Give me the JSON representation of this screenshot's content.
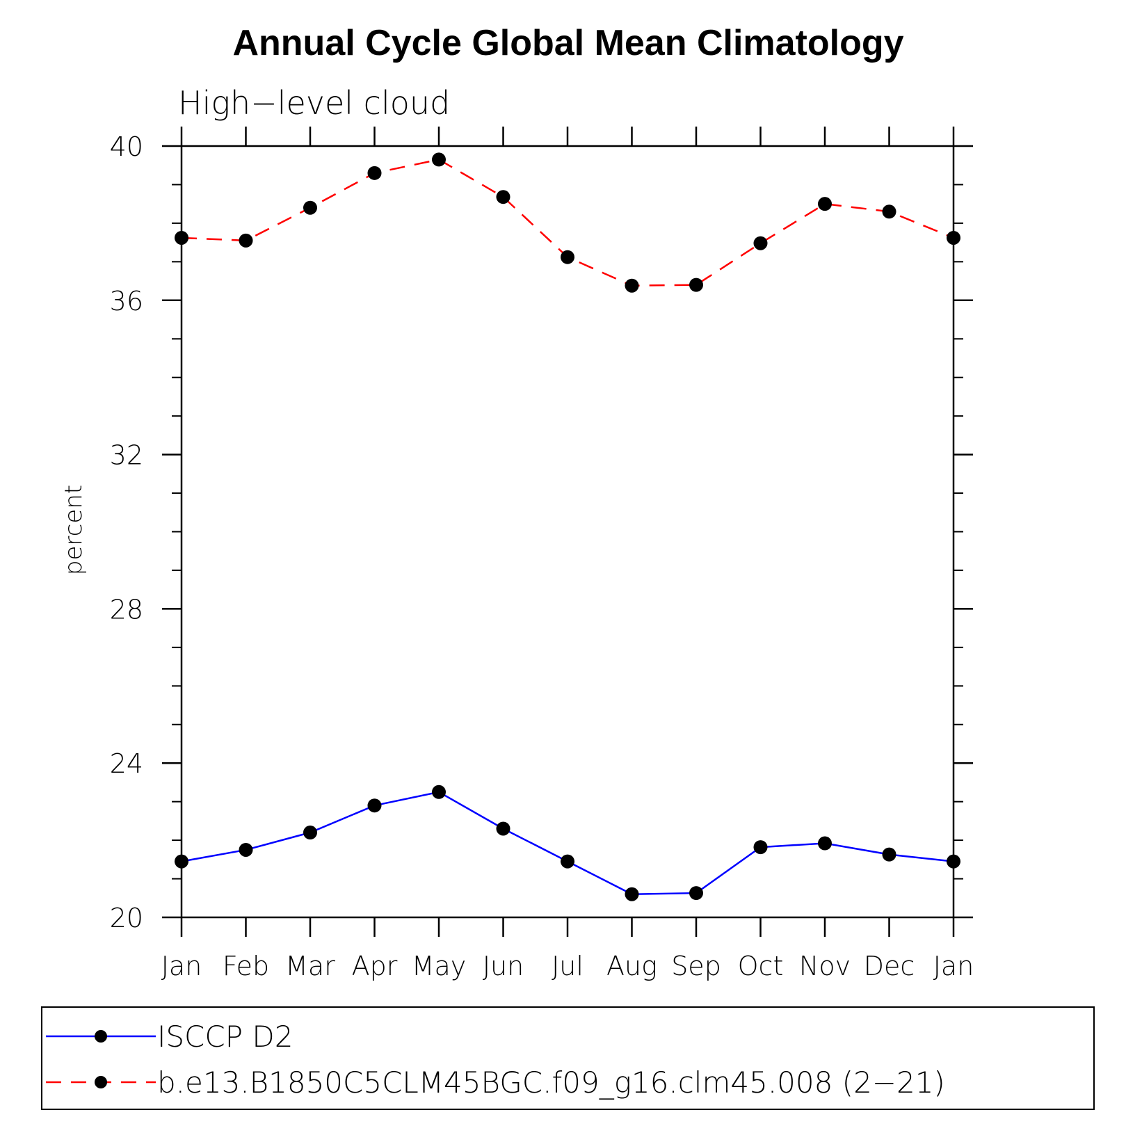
{
  "chart_data": {
    "type": "line",
    "title": "Annual Cycle Global Mean Climatology",
    "subtitle": "High−level cloud",
    "xlabel": "",
    "ylabel": "percent",
    "categories": [
      "Jan",
      "Feb",
      "Mar",
      "Apr",
      "May",
      "Jun",
      "Jul",
      "Aug",
      "Sep",
      "Oct",
      "Nov",
      "Dec",
      "Jan"
    ],
    "ylim": [
      20,
      40
    ],
    "yticks": [
      20,
      24,
      28,
      32,
      36,
      40
    ],
    "yticks_labels": [
      "20",
      "24",
      "28",
      "32",
      "36",
      "40"
    ],
    "y_minor_step": 1,
    "grid": false,
    "legend_position": "bottom",
    "series": [
      {
        "name": "ISCCP D2",
        "color": "#0000ff",
        "line_style": "solid",
        "marker": "filled-circle",
        "values": [
          21.45,
          21.75,
          22.2,
          22.9,
          23.25,
          22.3,
          21.45,
          20.6,
          20.63,
          21.82,
          21.92,
          21.63,
          21.45
        ]
      },
      {
        "name": "b.e13.B1850C5CLM45BGC.f09_g16.clm45.008 (2−21)",
        "color": "#ff0000",
        "line_style": "dashed",
        "marker": "filled-circle",
        "values": [
          37.62,
          37.55,
          38.4,
          39.3,
          39.65,
          38.68,
          37.12,
          36.38,
          36.4,
          37.48,
          38.5,
          38.3,
          37.62
        ]
      }
    ]
  }
}
